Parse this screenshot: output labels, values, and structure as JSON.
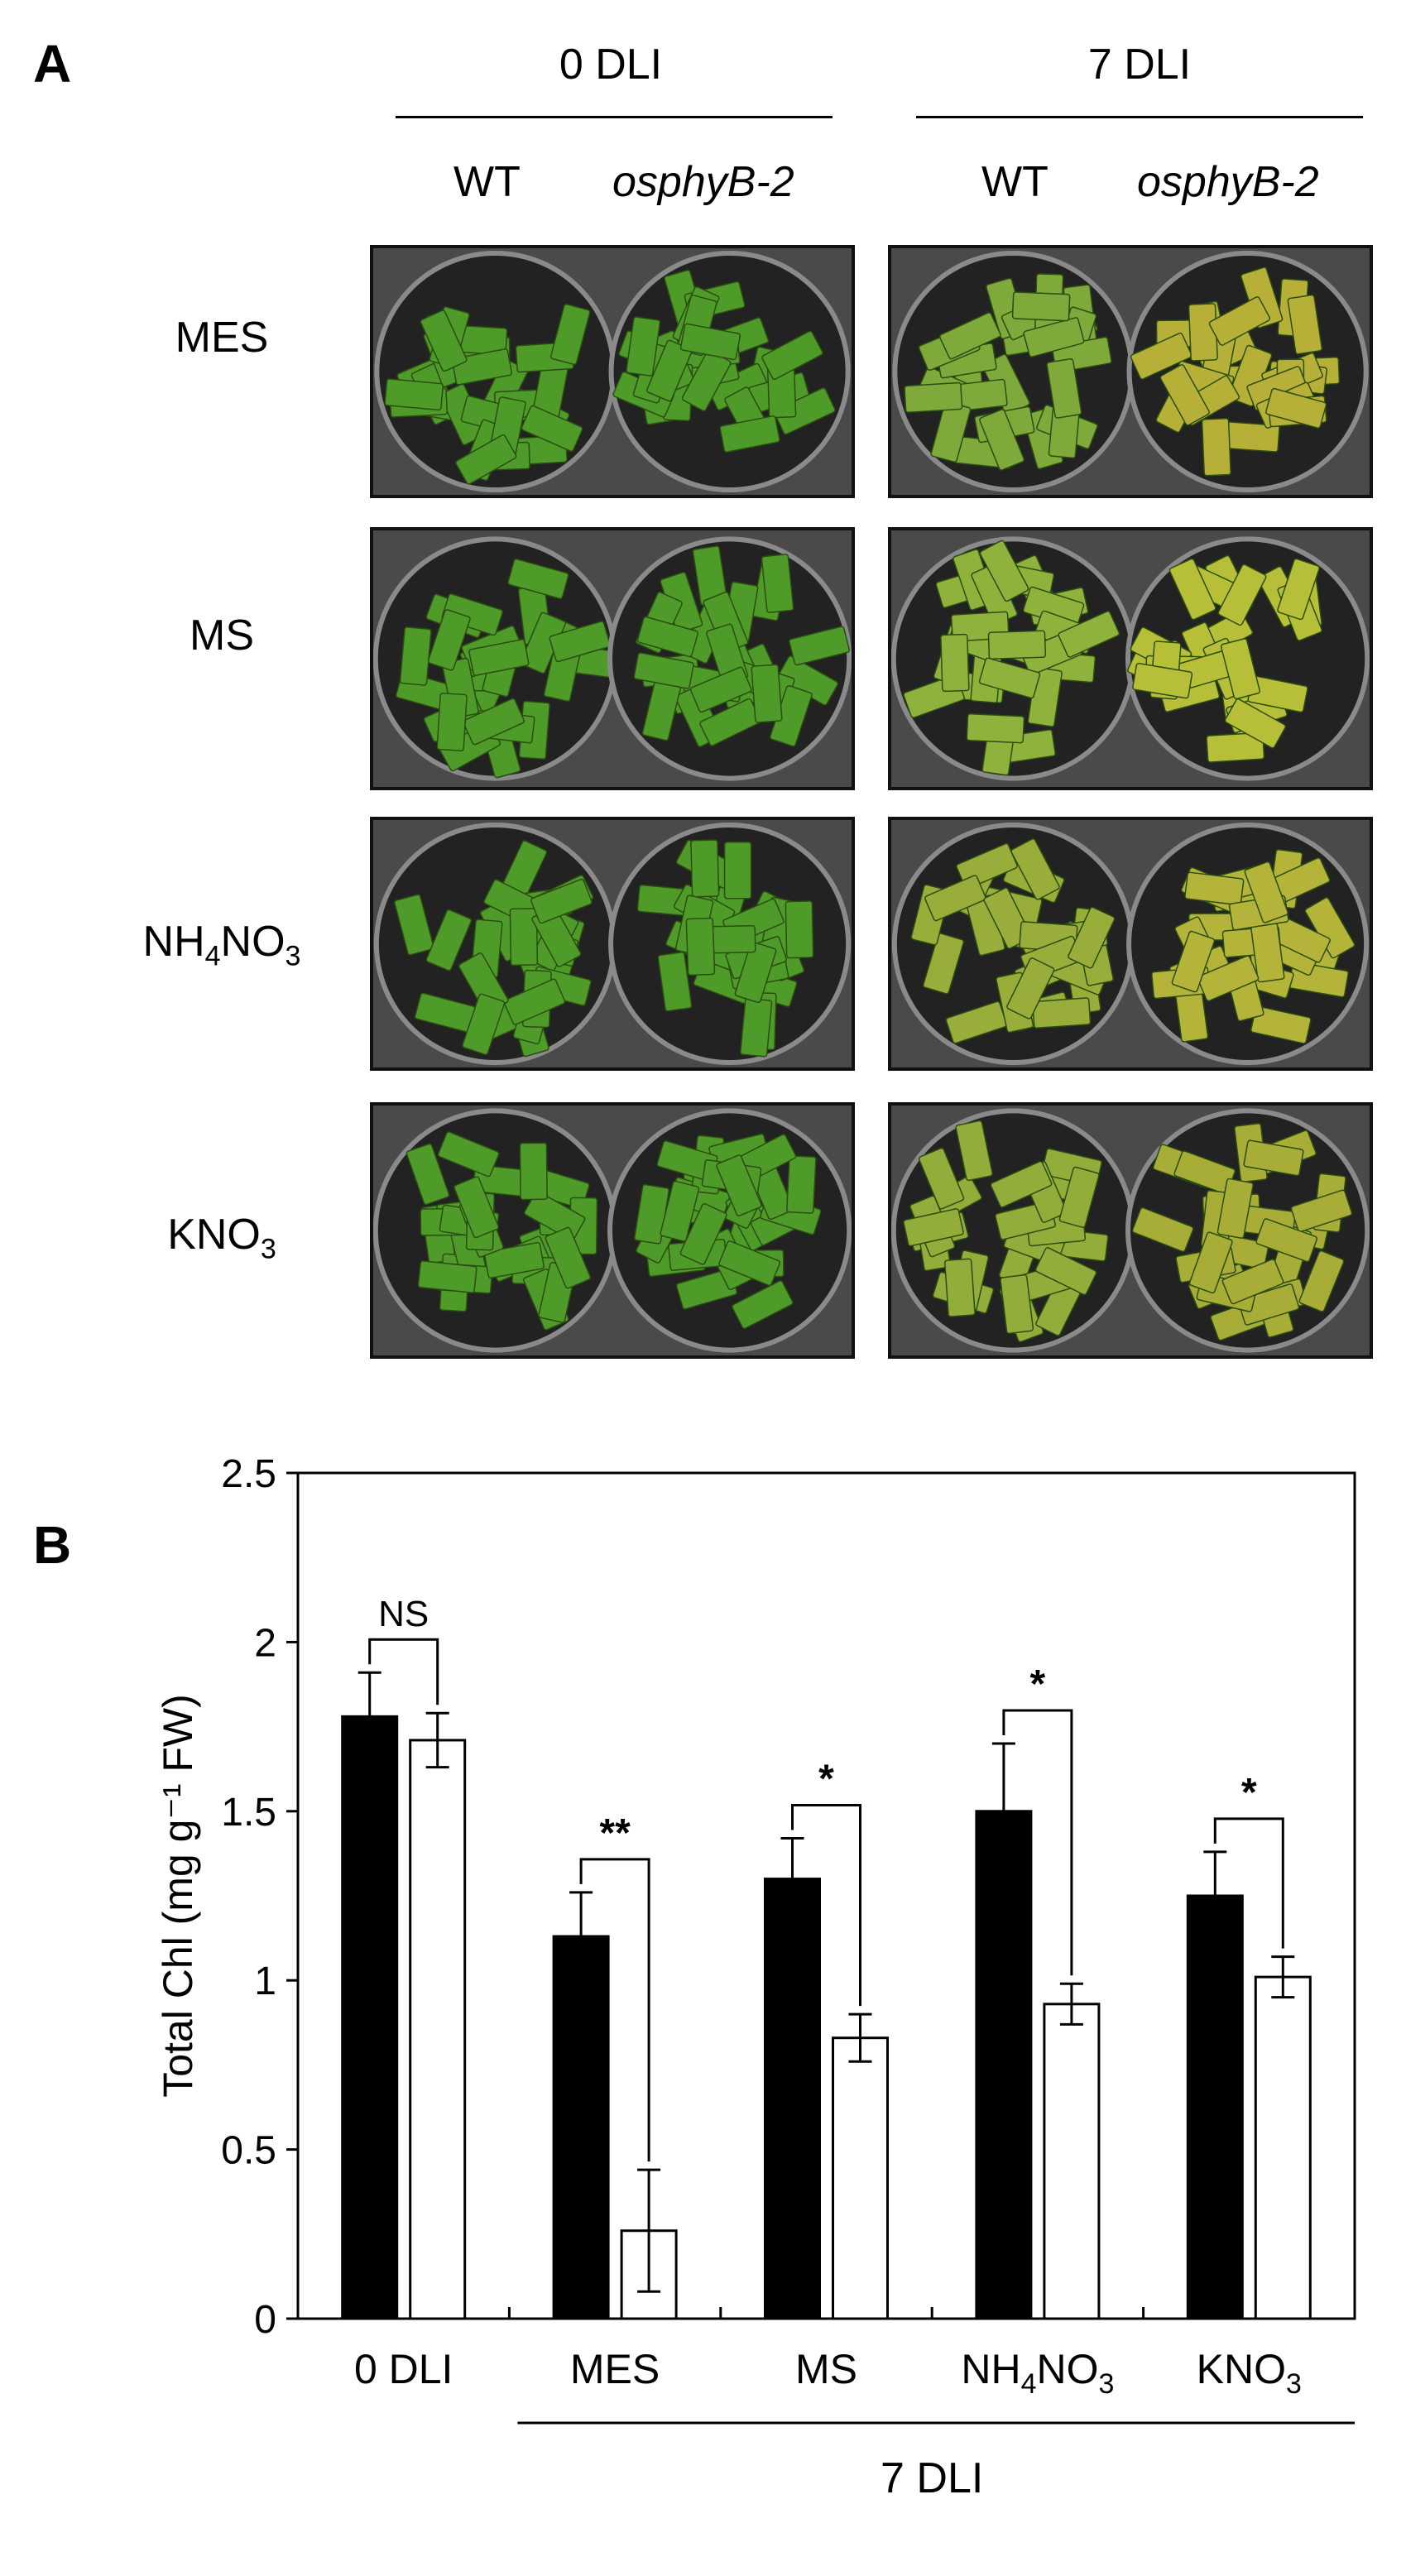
{
  "panel_a": {
    "letter": "A",
    "groups": [
      {
        "label": "0 DLI",
        "cols": [
          "WT",
          "osphyB-2"
        ]
      },
      {
        "label": "7 DLI",
        "cols": [
          "WT",
          "osphyB-2"
        ]
      }
    ],
    "rows": [
      {
        "label": "MES"
      },
      {
        "label": "MS"
      },
      {
        "label": "NH",
        "sub1": "4",
        "mid": "NO",
        "sub2": "3"
      },
      {
        "label": "KNO",
        "sub2": "3"
      }
    ],
    "photo_tone": {
      "day0": "#4e9b2a",
      "wt7": [
        "#7fa93a",
        "#8fb23c",
        "#98ad3a",
        "#93ad3a"
      ],
      "mut7": [
        "#b7b038",
        "#b7bf38",
        "#b5b43a",
        "#a8ad38"
      ]
    }
  },
  "panel_b": {
    "letter": "B",
    "bottom_label": "7 DLI"
  },
  "chart_data": {
    "type": "bar",
    "ylabel": "Total Chl (mg g⁻¹ FW)",
    "ylim": [
      0,
      2.5
    ],
    "yticks": [
      "0",
      "0.5",
      "1",
      "1.5",
      "2",
      "2.5"
    ],
    "categories": [
      "0 DLI",
      "MES",
      "MS",
      "NH4NO3",
      "KNO3"
    ],
    "category_labels": [
      {
        "base": "0 DLI"
      },
      {
        "base": "MES"
      },
      {
        "base": "MS"
      },
      {
        "base": "NH",
        "sub1": "4",
        "mid": "NO",
        "sub2": "3"
      },
      {
        "base": "KNO",
        "sub2": "3"
      }
    ],
    "series": [
      {
        "values": [
          1.78,
          1.13,
          1.3,
          1.5,
          1.25
        ],
        "errors": [
          0.13,
          0.13,
          0.12,
          0.2,
          0.13
        ],
        "color": "#000000"
      },
      {
        "values": [
          1.71,
          0.26,
          0.83,
          0.93,
          1.01
        ],
        "errors": [
          0.08,
          0.18,
          0.07,
          0.06,
          0.06
        ],
        "color": "#ffffff"
      }
    ],
    "significance": [
      "NS",
      "**",
      "*",
      "*",
      "*"
    ],
    "grid": false,
    "legend": "none"
  }
}
